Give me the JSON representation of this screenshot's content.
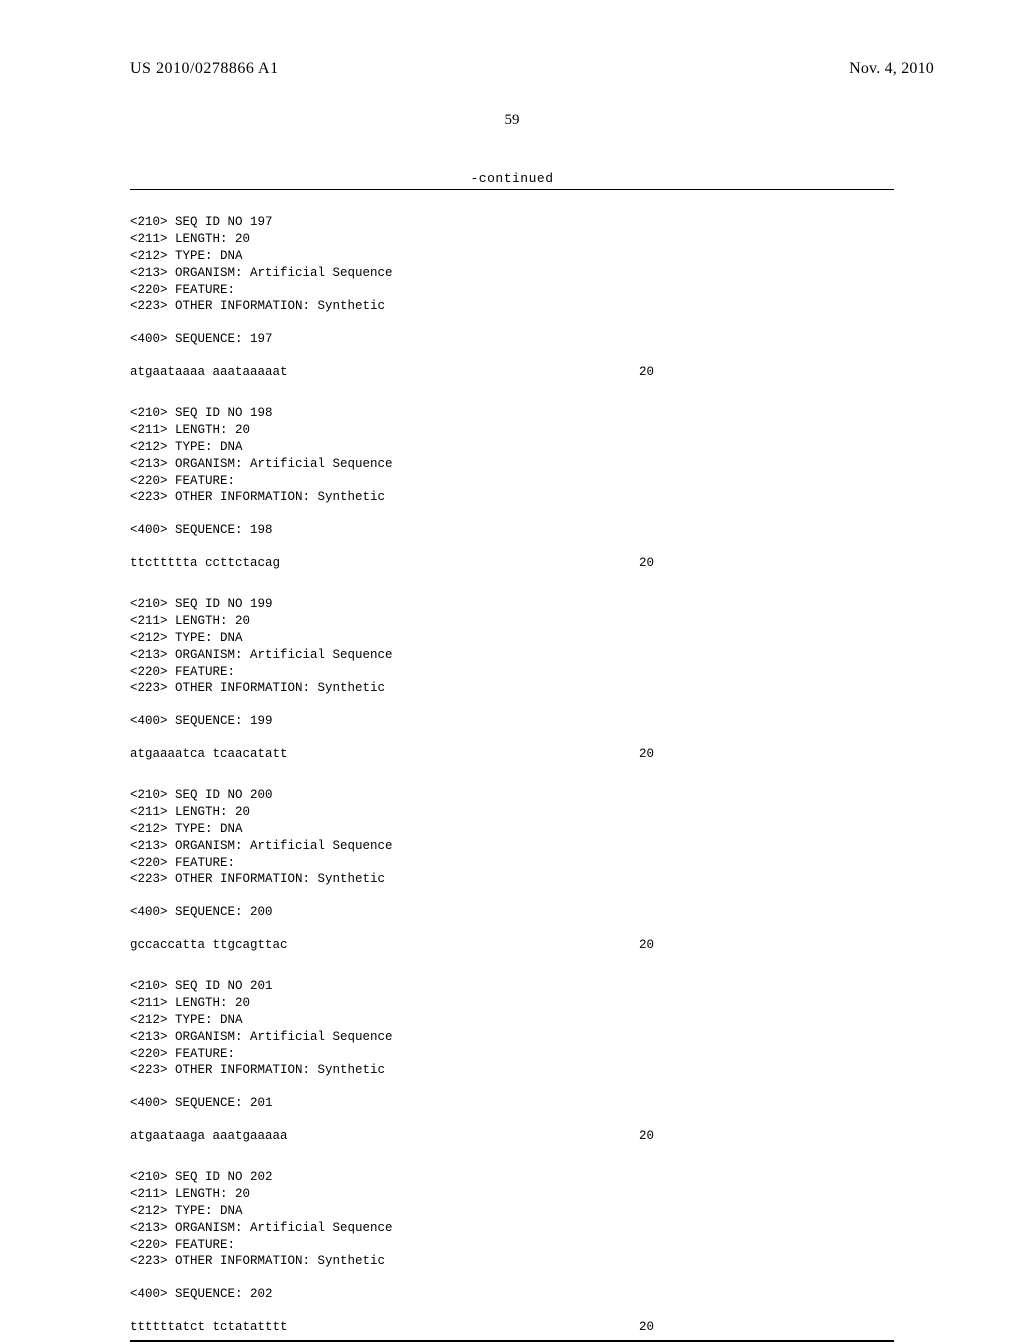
{
  "header": {
    "publication_number": "US 2010/0278866 A1",
    "publication_date": "Nov. 4, 2010"
  },
  "page_number": "59",
  "continued_label": "-continued",
  "entries": [
    {
      "seq_id": "<210> SEQ ID NO 197",
      "length": "<211> LENGTH: 20",
      "type": "<212> TYPE: DNA",
      "organism": "<213> ORGANISM: Artificial Sequence",
      "feature": "<220> FEATURE:",
      "other": "<223> OTHER INFORMATION: Synthetic",
      "sequence_label": "<400> SEQUENCE: 197",
      "sequence": "atgaataaaa aaataaaaat",
      "seq_len": "20"
    },
    {
      "seq_id": "<210> SEQ ID NO 198",
      "length": "<211> LENGTH: 20",
      "type": "<212> TYPE: DNA",
      "organism": "<213> ORGANISM: Artificial Sequence",
      "feature": "<220> FEATURE:",
      "other": "<223> OTHER INFORMATION: Synthetic",
      "sequence_label": "<400> SEQUENCE: 198",
      "sequence": "ttcttttta ccttctacag",
      "seq_len": "20"
    },
    {
      "seq_id": "<210> SEQ ID NO 199",
      "length": "<211> LENGTH: 20",
      "type": "<212> TYPE: DNA",
      "organism": "<213> ORGANISM: Artificial Sequence",
      "feature": "<220> FEATURE:",
      "other": "<223> OTHER INFORMATION: Synthetic",
      "sequence_label": "<400> SEQUENCE: 199",
      "sequence": "atgaaaatca tcaacatatt",
      "seq_len": "20"
    },
    {
      "seq_id": "<210> SEQ ID NO 200",
      "length": "<211> LENGTH: 20",
      "type": "<212> TYPE: DNA",
      "organism": "<213> ORGANISM: Artificial Sequence",
      "feature": "<220> FEATURE:",
      "other": "<223> OTHER INFORMATION: Synthetic",
      "sequence_label": "<400> SEQUENCE: 200",
      "sequence": "gccaccatta ttgcagttac",
      "seq_len": "20"
    },
    {
      "seq_id": "<210> SEQ ID NO 201",
      "length": "<211> LENGTH: 20",
      "type": "<212> TYPE: DNA",
      "organism": "<213> ORGANISM: Artificial Sequence",
      "feature": "<220> FEATURE:",
      "other": "<223> OTHER INFORMATION: Synthetic",
      "sequence_label": "<400> SEQUENCE: 201",
      "sequence": "atgaataaga aaatgaaaaa",
      "seq_len": "20"
    },
    {
      "seq_id": "<210> SEQ ID NO 202",
      "length": "<211> LENGTH: 20",
      "type": "<212> TYPE: DNA",
      "organism": "<213> ORGANISM: Artificial Sequence",
      "feature": "<220> FEATURE:",
      "other": "<223> OTHER INFORMATION: Synthetic",
      "sequence_label": "<400> SEQUENCE: 202",
      "sequence": "ttttttatct tctatatttt",
      "seq_len": "20"
    }
  ]
}
